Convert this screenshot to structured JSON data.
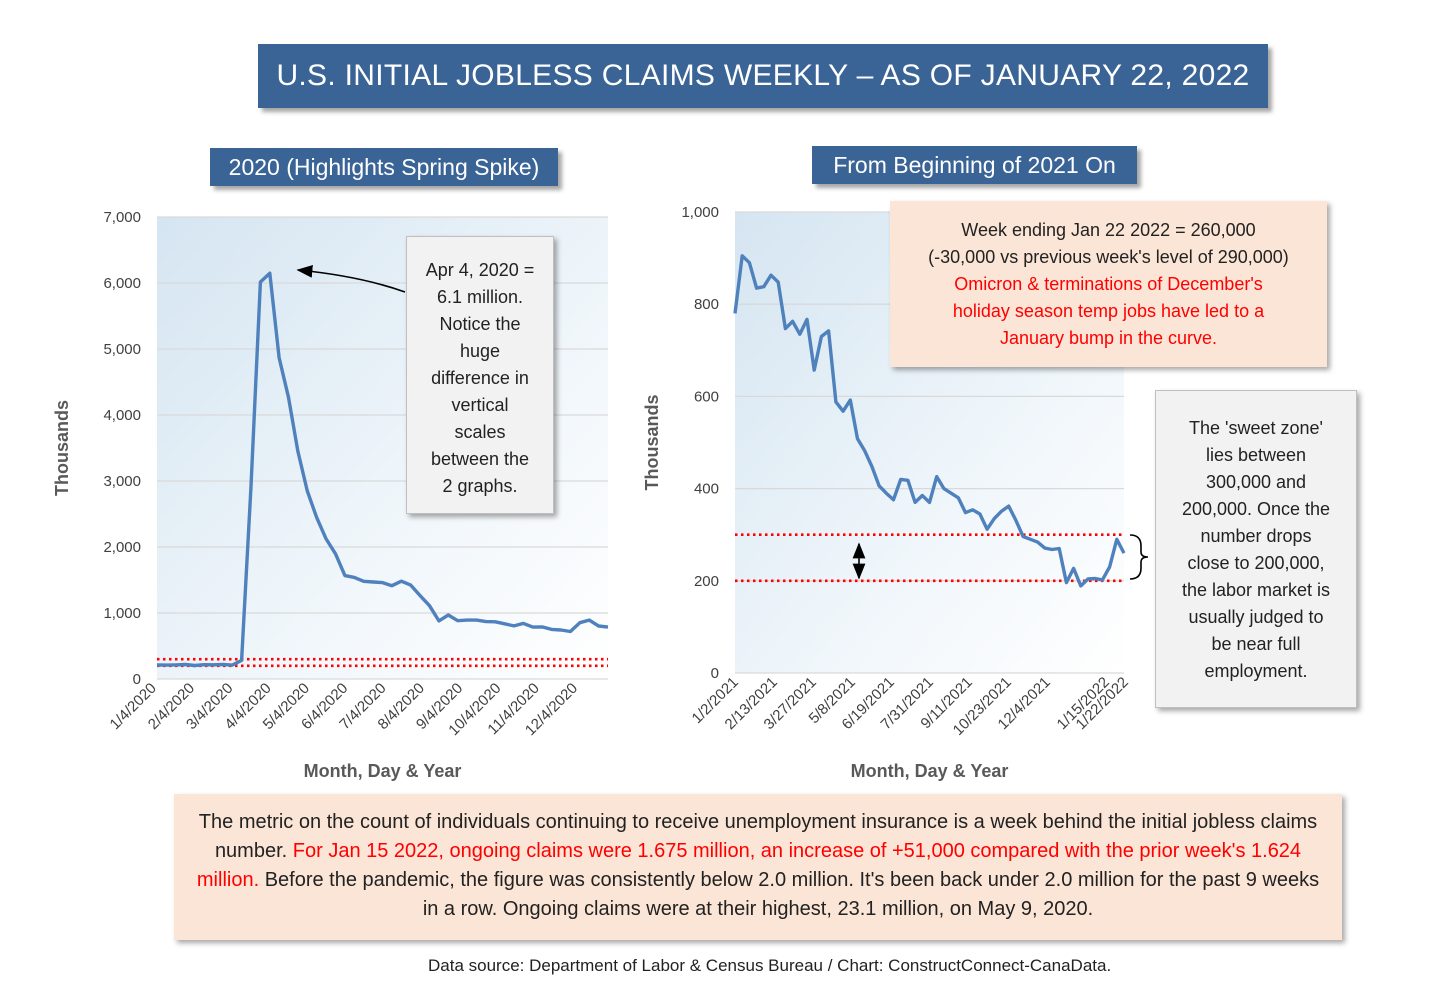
{
  "title": "U.S. INITIAL JOBLESS CLAIMS WEEKLY – AS OF JANUARY 22, 2022",
  "source": "Data source: Department of Labor & Census Bureau / Chart: ConstructConnect-CanaData.",
  "colors": {
    "banner": "#3b6496",
    "series": "#4f81bd",
    "threshold": "#ff0000",
    "note_fill": "#fbe5d6",
    "callout_fill": "#f2f2f2"
  },
  "annotations": {
    "apr_box": [
      "Apr 4, 2020 =",
      "6.1 million.",
      "Notice the",
      "huge",
      "difference in",
      "vertical",
      "scales",
      "between the",
      "2 graphs."
    ],
    "week_box": {
      "black": [
        "Week ending Jan 22 2022 = 260,000",
        "(-30,000 vs previous week's level of 290,000)"
      ],
      "red": [
        "Omicron & terminations of December's",
        "holiday season temp jobs have led to a",
        "January bump in the curve."
      ]
    },
    "sweet_box": [
      "The 'sweet zone'",
      "lies between",
      "300,000 and",
      "200,000. Once the",
      "number drops",
      "close to 200,000,",
      "the labor market is",
      "usually judged to",
      "be near full",
      "employment."
    ],
    "bottom": {
      "p1": "The metric on the count of individuals continuing to receive unemployment insurance is a week behind the initial jobless claims number.",
      "p2": "For Jan 15 2022, ongoing claims were 1.675 million, an increase of +51,000 compared with the prior week's 1.624 million.",
      "p3": "Before the pandemic, the figure was consistently below 2.0 million. It's been back under 2.0 million for the past 9 weeks in a row. Ongoing claims were at their highest, 23.1 million, on May 9, 2020."
    }
  },
  "chart_data": [
    {
      "type": "line",
      "title": "2020 (Highlights Spring Spike)",
      "xlabel": "Month, Day & Year",
      "ylabel": "Thousands",
      "ylim": [
        0,
        7000
      ],
      "yticks": [
        0,
        1000,
        2000,
        3000,
        4000,
        5000,
        6000,
        7000
      ],
      "ytick_labels": [
        "0",
        "1,000",
        "2,000",
        "3,000",
        "4,000",
        "5,000",
        "6,000",
        "7,000"
      ],
      "x_tick_labels": [
        "1/4/2020",
        "2/4/2020",
        "3/4/2020",
        "4/4/2020",
        "5/4/2020",
        "6/4/2020",
        "7/4/2020",
        "8/4/2020",
        "9/4/2020",
        "10/4/2020",
        "11/4/2020",
        "12/4/2020"
      ],
      "grid": true,
      "reference_lines": [
        200,
        300
      ],
      "series": [
        {
          "name": "",
          "values": [
            212,
            211,
            214,
            220,
            204,
            216,
            215,
            219,
            211,
            282,
            2920,
            6015,
            6149,
            4869,
            4267,
            3449,
            2849,
            2446,
            2123,
            1897,
            1566,
            1540,
            1480,
            1470,
            1460,
            1413,
            1482,
            1422,
            1263,
            1110,
            881,
            970,
            884,
            893,
            893,
            870,
            866,
            837,
            804,
            843,
            787,
            790,
            751,
            742,
            719,
            853,
            892,
            803,
            787
          ]
        }
      ]
    },
    {
      "type": "line",
      "title": "From Beginning of 2021 On",
      "xlabel": "Month, Day & Year",
      "ylabel": "Thousands",
      "ylim": [
        0,
        1000
      ],
      "yticks": [
        0,
        200,
        400,
        600,
        800,
        1000
      ],
      "ytick_labels": [
        "0",
        "200",
        "400",
        "600",
        "800",
        "1,000"
      ],
      "x_tick_labels": [
        "1/2/2021",
        "2/13/2021",
        "3/27/2021",
        "5/8/2021",
        "6/19/2021",
        "7/31/2021",
        "9/11/2021",
        "10/23/2021",
        "12/4/2021",
        "1/15/2022",
        "1/22/2022"
      ],
      "grid": true,
      "reference_lines": [
        200,
        300
      ],
      "series": [
        {
          "name": "",
          "values": [
            780,
            905,
            890,
            835,
            838,
            863,
            848,
            747,
            763,
            735,
            767,
            657,
            730,
            742,
            588,
            568,
            592,
            508,
            482,
            448,
            406,
            390,
            376,
            420,
            418,
            370,
            385,
            370,
            426,
            400,
            390,
            380,
            348,
            354,
            345,
            312,
            335,
            351,
            362,
            331,
            296,
            290,
            284,
            271,
            268,
            270,
            196,
            227,
            189,
            204,
            205,
            202,
            230,
            290,
            260
          ]
        }
      ]
    }
  ]
}
